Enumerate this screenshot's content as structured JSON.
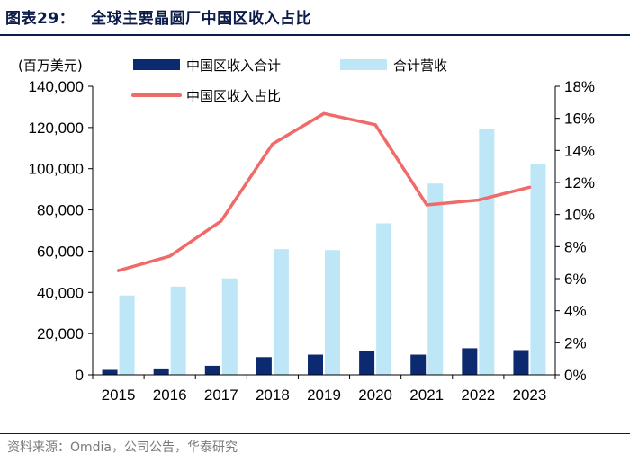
{
  "figure": {
    "number": "图表29：",
    "title": "全球主要晶圆厂中国区收入占比",
    "source": "资料来源：Omdia，公司公告，华泰研究"
  },
  "colors": {
    "china_revenue": "#0b2a6f",
    "total_revenue": "#bde7f7",
    "ratio_line": "#f06a6a",
    "axis": "#000000"
  },
  "chart_data": {
    "type": "bar",
    "title": "全球主要晶圆厂中国区收入占比",
    "ylabel": "(百万美元)",
    "categories": [
      "2015",
      "2016",
      "2017",
      "2018",
      "2019",
      "2020",
      "2021",
      "2022",
      "2023"
    ],
    "ylim": [
      0,
      140000
    ],
    "y_ticks": [
      0,
      20000,
      40000,
      60000,
      80000,
      100000,
      120000,
      140000
    ],
    "y_tick_labels": [
      "0",
      "20,000",
      "40,000",
      "60,000",
      "80,000",
      "100,000",
      "120,000",
      "140,000"
    ],
    "y2lim": [
      0,
      18
    ],
    "y2_ticks": [
      0,
      2,
      4,
      6,
      8,
      10,
      12,
      14,
      16,
      18
    ],
    "y2_tick_labels": [
      "0%",
      "2%",
      "4%",
      "6%",
      "8%",
      "10%",
      "12%",
      "14%",
      "16%",
      "18%"
    ],
    "legend_position": "top",
    "grid": false,
    "series": [
      {
        "name": "中国区收入合计",
        "type": "bar",
        "axis": "left",
        "values": [
          2400,
          3100,
          4400,
          8600,
          9800,
          11400,
          9800,
          12900,
          12000
        ]
      },
      {
        "name": "合计营收",
        "type": "bar",
        "axis": "left",
        "values": [
          38500,
          42800,
          46800,
          61000,
          60500,
          73500,
          92800,
          119500,
          102500
        ]
      },
      {
        "name": "中国区收入占比",
        "type": "line",
        "axis": "right",
        "unit": "%",
        "values": [
          6.5,
          7.4,
          9.6,
          14.4,
          16.3,
          15.6,
          10.6,
          10.9,
          11.7
        ]
      }
    ]
  }
}
